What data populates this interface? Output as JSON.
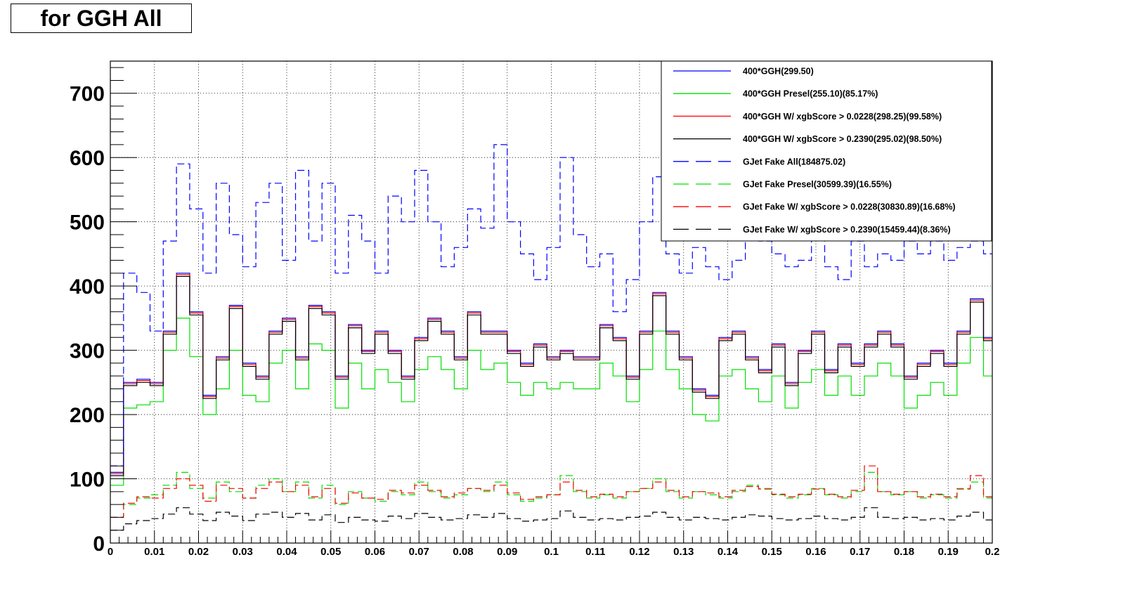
{
  "title": "for GGH All",
  "chart_data": {
    "type": "line",
    "title": "for GGH All",
    "xlabel": "",
    "ylabel": "",
    "xlim": [
      0,
      0.2
    ],
    "ylim": [
      0,
      750
    ],
    "grid": true,
    "legend_position": "top-right",
    "x_ticks": [
      "0",
      "0.01",
      "0.02",
      "0.03",
      "0.04",
      "0.05",
      "0.06",
      "0.07",
      "0.08",
      "0.09",
      "0.1",
      "0.11",
      "0.12",
      "0.13",
      "0.14",
      "0.15",
      "0.16",
      "0.17",
      "0.18",
      "0.19",
      "0.2"
    ],
    "y_ticks": [
      "0",
      "100",
      "200",
      "300",
      "400",
      "500",
      "600",
      "700"
    ],
    "bin_centers": [
      0.0015,
      0.0045,
      0.0075,
      0.0105,
      0.0135,
      0.0165,
      0.0195,
      0.0225,
      0.0255,
      0.0285,
      0.0315,
      0.0345,
      0.0375,
      0.0405,
      0.0435,
      0.0465,
      0.0495,
      0.0525,
      0.0555,
      0.0585,
      0.0615,
      0.0645,
      0.0675,
      0.0705,
      0.0735,
      0.0765,
      0.0795,
      0.0825,
      0.0855,
      0.0885,
      0.0915,
      0.0945,
      0.0975,
      0.1005,
      0.1035,
      0.1065,
      0.1095,
      0.1125,
      0.1155,
      0.1185,
      0.1215,
      0.1245,
      0.1275,
      0.1305,
      0.1335,
      0.1365,
      0.1395,
      0.1425,
      0.1455,
      0.1485,
      0.1515,
      0.1545,
      0.1575,
      0.1605,
      0.1635,
      0.1665,
      0.1695,
      0.1725,
      0.1755,
      0.1785,
      0.1815,
      0.1845,
      0.1875,
      0.1905,
      0.1935,
      0.1965,
      0.1995
    ],
    "series": [
      {
        "name": "400*GGH(299.50)",
        "color": "#0000ff",
        "style": "solid",
        "values": [
          110,
          250,
          255,
          250,
          330,
          420,
          360,
          230,
          290,
          370,
          280,
          260,
          330,
          350,
          290,
          370,
          360,
          260,
          340,
          300,
          330,
          300,
          260,
          320,
          350,
          330,
          290,
          360,
          330,
          330,
          300,
          280,
          310,
          290,
          300,
          290,
          290,
          340,
          320,
          260,
          330,
          390,
          330,
          290,
          240,
          230,
          320,
          330,
          290,
          270,
          310,
          250,
          300,
          330,
          270,
          310,
          280,
          310,
          330,
          310,
          260,
          280,
          300,
          280,
          330,
          380,
          320
        ]
      },
      {
        "name": "400*GGH Presel(255.10)(85.17%)",
        "color": "#00e000",
        "style": "solid",
        "values": [
          90,
          210,
          215,
          220,
          300,
          350,
          290,
          200,
          240,
          300,
          230,
          220,
          280,
          300,
          240,
          310,
          300,
          210,
          280,
          240,
          270,
          250,
          220,
          270,
          290,
          270,
          240,
          300,
          270,
          280,
          250,
          230,
          250,
          240,
          250,
          240,
          240,
          280,
          260,
          220,
          270,
          330,
          270,
          240,
          200,
          190,
          260,
          270,
          240,
          220,
          260,
          210,
          250,
          270,
          230,
          260,
          230,
          260,
          280,
          260,
          210,
          230,
          250,
          230,
          280,
          320,
          260
        ]
      },
      {
        "name": "400*GGH W/ xgbScore > 0.0228(298.25)(99.58%)",
        "color": "#ff0000",
        "style": "solid",
        "values": [
          108,
          248,
          253,
          248,
          328,
          418,
          358,
          228,
          288,
          368,
          278,
          258,
          328,
          348,
          288,
          368,
          358,
          258,
          338,
          298,
          328,
          298,
          258,
          318,
          348,
          328,
          288,
          358,
          328,
          328,
          298,
          278,
          308,
          288,
          298,
          288,
          288,
          338,
          318,
          258,
          328,
          388,
          328,
          288,
          238,
          228,
          318,
          328,
          288,
          268,
          308,
          248,
          298,
          328,
          268,
          308,
          278,
          308,
          328,
          308,
          258,
          278,
          298,
          278,
          328,
          378,
          318
        ]
      },
      {
        "name": "400*GGH W/ xgbScore > 0.2390(295.02)(98.50%)",
        "color": "#000000",
        "style": "solid",
        "values": [
          105,
          245,
          250,
          245,
          325,
          415,
          355,
          225,
          285,
          365,
          275,
          255,
          325,
          345,
          285,
          365,
          355,
          255,
          335,
          295,
          325,
          295,
          255,
          315,
          345,
          325,
          285,
          355,
          325,
          325,
          295,
          275,
          305,
          285,
          295,
          285,
          285,
          335,
          315,
          255,
          325,
          385,
          325,
          285,
          235,
          225,
          315,
          325,
          285,
          265,
          305,
          245,
          295,
          325,
          265,
          305,
          275,
          305,
          325,
          305,
          255,
          275,
          295,
          275,
          325,
          375,
          315
        ]
      },
      {
        "name": "GJet Fake All(184875.02)",
        "color": "#0000ff",
        "style": "dashed",
        "values": [
          120,
          420,
          390,
          330,
          470,
          590,
          520,
          420,
          560,
          480,
          430,
          530,
          560,
          440,
          580,
          470,
          560,
          420,
          510,
          470,
          420,
          540,
          500,
          580,
          500,
          430,
          460,
          520,
          490,
          620,
          500,
          450,
          410,
          460,
          600,
          480,
          430,
          450,
          360,
          410,
          500,
          570,
          450,
          420,
          460,
          430,
          410,
          440,
          480,
          470,
          450,
          430,
          440,
          480,
          430,
          410,
          470,
          430,
          450,
          440,
          470,
          450,
          470,
          440,
          460,
          470,
          450
        ]
      },
      {
        "name": "GJet Fake Presel(30599.39)(16.55%)",
        "color": "#00e000",
        "style": "dashed",
        "values": [
          40,
          60,
          70,
          75,
          90,
          110,
          85,
          70,
          95,
          80,
          70,
          90,
          100,
          80,
          95,
          70,
          90,
          60,
          80,
          70,
          65,
          80,
          75,
          95,
          80,
          70,
          75,
          85,
          80,
          95,
          75,
          65,
          70,
          75,
          105,
          80,
          70,
          75,
          70,
          80,
          85,
          100,
          80,
          70,
          80,
          75,
          70,
          80,
          90,
          85,
          75,
          70,
          75,
          85,
          75,
          70,
          80,
          110,
          80,
          75,
          80,
          70,
          75,
          70,
          85,
          95,
          70
        ]
      },
      {
        "name": "GJet Fake W/ xgbScore > 0.0228(30830.89)(16.68%)",
        "color": "#ff0000",
        "style": "dashed",
        "values": [
          40,
          62,
          72,
          70,
          85,
          100,
          90,
          65,
          90,
          85,
          70,
          85,
          95,
          80,
          90,
          72,
          85,
          62,
          78,
          70,
          68,
          82,
          78,
          90,
          82,
          72,
          78,
          85,
          82,
          90,
          78,
          68,
          72,
          75,
          95,
          82,
          72,
          76,
          72,
          80,
          85,
          95,
          82,
          72,
          80,
          78,
          72,
          82,
          88,
          84,
          76,
          72,
          76,
          84,
          76,
          72,
          82,
          120,
          80,
          76,
          80,
          72,
          76,
          72,
          84,
          105,
          72
        ]
      },
      {
        "name": "GJet Fake W/ xgbScore > 0.2390(15459.44)(8.36%)",
        "color": "#000000",
        "style": "dashed",
        "values": [
          20,
          30,
          35,
          38,
          45,
          55,
          45,
          35,
          48,
          42,
          35,
          45,
          48,
          40,
          46,
          36,
          44,
          32,
          40,
          36,
          34,
          42,
          38,
          46,
          40,
          36,
          38,
          44,
          40,
          46,
          38,
          34,
          36,
          38,
          50,
          40,
          36,
          38,
          36,
          40,
          42,
          48,
          40,
          36,
          40,
          38,
          36,
          40,
          44,
          42,
          38,
          36,
          38,
          42,
          38,
          36,
          40,
          55,
          40,
          38,
          40,
          36,
          38,
          36,
          42,
          48,
          36
        ]
      }
    ]
  }
}
